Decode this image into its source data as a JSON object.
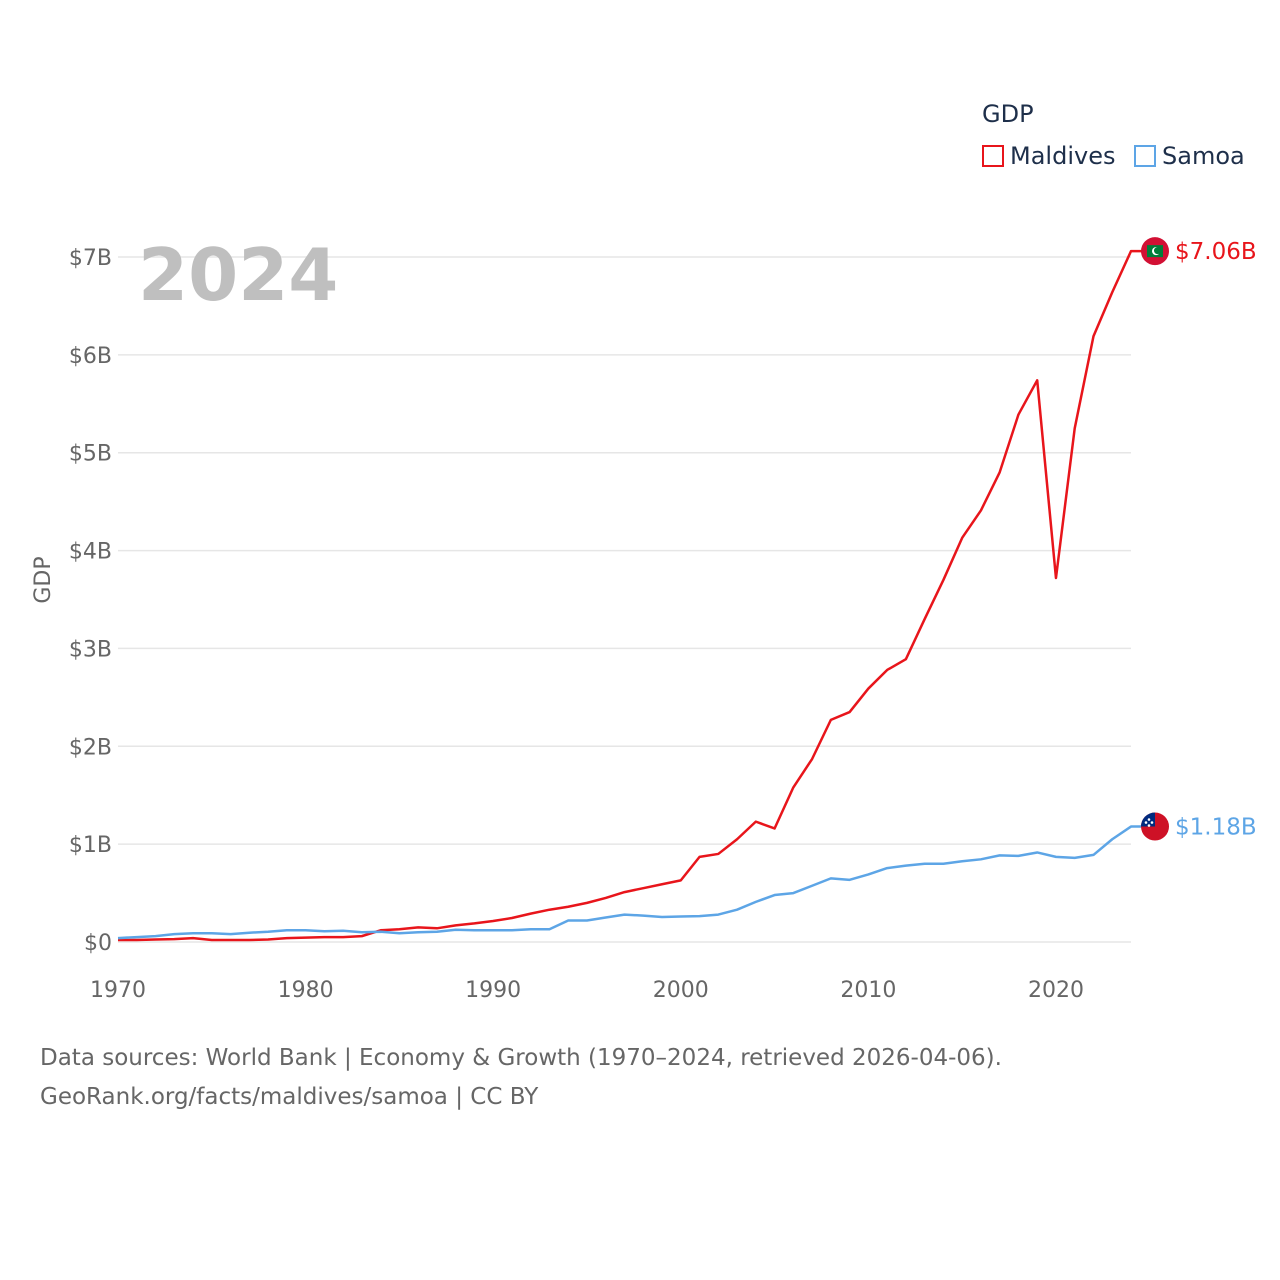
{
  "legend": {
    "title": "GDP",
    "items": [
      {
        "label": "Maldives",
        "color": "#e8151b"
      },
      {
        "label": "Samoa",
        "color": "#5da5e6"
      }
    ]
  },
  "year_label": "2024",
  "sources": {
    "line1": "Data sources: World Bank | Economy & Growth (1970–2024, retrieved 2026-04-06).",
    "line2": "GeoRank.org/facts/maldives/samoa | CC BY"
  },
  "chart_data": {
    "type": "line",
    "title": "",
    "ylabel": "GDP",
    "xlabel": "",
    "xlim": [
      1970,
      2024
    ],
    "ylim": [
      0,
      7000000000
    ],
    "x_ticks": [
      1970,
      1980,
      1990,
      2000,
      2010,
      2020
    ],
    "x_tick_labels": [
      "1970",
      "1980",
      "1990",
      "2000",
      "2010",
      "2020"
    ],
    "y_ticks": [
      0,
      1000000000,
      2000000000,
      3000000000,
      4000000000,
      5000000000,
      6000000000,
      7000000000
    ],
    "y_tick_labels": [
      "$0",
      "$1B",
      "$2B",
      "$3B",
      "$4B",
      "$5B",
      "$6B",
      "$7B"
    ],
    "grid": true,
    "legend_position": "top-right",
    "x": [
      1970,
      1971,
      1972,
      1973,
      1974,
      1975,
      1976,
      1977,
      1978,
      1979,
      1980,
      1981,
      1982,
      1983,
      1984,
      1985,
      1986,
      1987,
      1988,
      1989,
      1990,
      1991,
      1992,
      1993,
      1994,
      1995,
      1996,
      1997,
      1998,
      1999,
      2000,
      2001,
      2002,
      2003,
      2004,
      2005,
      2006,
      2007,
      2008,
      2009,
      2010,
      2011,
      2012,
      2013,
      2014,
      2015,
      2016,
      2017,
      2018,
      2019,
      2020,
      2021,
      2022,
      2023,
      2024
    ],
    "series": [
      {
        "name": "Maldives",
        "color": "#e8151b",
        "end_label": "$7.06B",
        "values": [
          0.02,
          0.02,
          0.025,
          0.03,
          0.04,
          0.02,
          0.02,
          0.02,
          0.025,
          0.04,
          0.045,
          0.05,
          0.05,
          0.06,
          0.12,
          0.13,
          0.15,
          0.14,
          0.17,
          0.19,
          0.215,
          0.245,
          0.29,
          0.33,
          0.36,
          0.4,
          0.45,
          0.51,
          0.55,
          0.59,
          0.63,
          0.87,
          0.9,
          1.05,
          1.23,
          1.16,
          1.58,
          1.87,
          2.27,
          2.35,
          2.59,
          2.78,
          2.89,
          3.3,
          3.7,
          4.13,
          4.41,
          4.8,
          5.39,
          5.74,
          3.72,
          5.25,
          6.19,
          6.64,
          7.06
        ]
      },
      {
        "name": "Samoa",
        "color": "#5da5e6",
        "end_label": "$1.18B",
        "values": [
          0.04,
          0.05,
          0.06,
          0.08,
          0.09,
          0.09,
          0.08,
          0.095,
          0.105,
          0.12,
          0.12,
          0.11,
          0.115,
          0.1,
          0.105,
          0.09,
          0.1,
          0.105,
          0.125,
          0.12,
          0.12,
          0.12,
          0.13,
          0.13,
          0.22,
          0.22,
          0.25,
          0.28,
          0.27,
          0.255,
          0.26,
          0.265,
          0.28,
          0.33,
          0.41,
          0.48,
          0.5,
          0.575,
          0.65,
          0.635,
          0.69,
          0.755,
          0.78,
          0.8,
          0.8,
          0.825,
          0.845,
          0.885,
          0.88,
          0.915,
          0.87,
          0.86,
          0.89,
          1.05,
          1.18
        ]
      }
    ],
    "value_scale": "billions"
  }
}
